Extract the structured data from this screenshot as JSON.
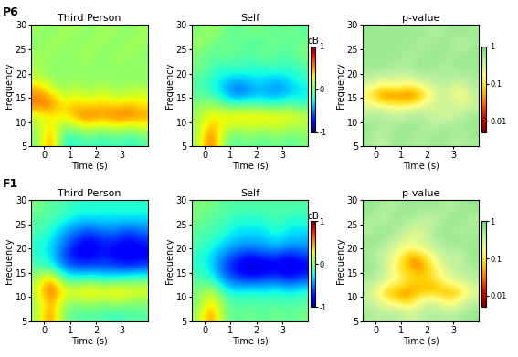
{
  "row_labels": [
    "P6",
    "F1"
  ],
  "chart_data": [
    {
      "type": "heatmap",
      "title": "Third Person",
      "xlabel": "Time (s)",
      "ylabel": "Frequency",
      "x": [
        -0.5,
        0,
        0.5,
        1,
        1.5,
        2,
        2.5,
        3,
        3.5,
        4
      ],
      "y": [
        5,
        7.5,
        10,
        12.5,
        15,
        17.5,
        20,
        22.5,
        25,
        27.5,
        30
      ],
      "xlim": [
        -0.5,
        4
      ],
      "ylim": [
        5,
        30
      ],
      "xticks": [
        0,
        1,
        2,
        3
      ],
      "yticks": [
        5,
        10,
        15,
        20,
        25,
        30
      ],
      "color_range": [
        -1,
        1
      ],
      "cells": [
        [
          0.0,
          0.6,
          -0.2,
          -0.2,
          -0.1,
          -0.2,
          -0.1,
          -0.2,
          -0.1
        ],
        [
          0.1,
          0.4,
          0.0,
          0.1,
          0.2,
          0.1,
          0.2,
          0.1,
          0.2
        ],
        [
          0.2,
          0.3,
          0.3,
          0.5,
          0.6,
          0.5,
          0.6,
          0.6,
          0.5
        ],
        [
          0.6,
          0.6,
          0.3,
          0.4,
          0.3,
          0.4,
          0.3,
          0.4,
          0.3
        ],
        [
          0.5,
          0.3,
          0.1,
          0.2,
          0.1,
          0.2,
          0.1,
          0.1,
          0.2
        ],
        [
          0.2,
          0.1,
          0.0,
          0.1,
          0.0,
          0.1,
          0.0,
          0.1,
          0.0
        ],
        [
          0.1,
          0.0,
          0.1,
          0.0,
          0.1,
          0.0,
          0.1,
          0.0,
          0.1
        ],
        [
          0.1,
          0.1,
          0.0,
          0.1,
          0.1,
          0.0,
          0.1,
          0.1,
          0.0
        ],
        [
          0.0,
          0.1,
          0.1,
          0.0,
          0.1,
          0.1,
          0.0,
          0.1,
          0.1
        ],
        [
          0.1,
          0.0,
          0.1,
          0.1,
          0.0,
          0.1,
          0.1,
          0.0,
          0.1
        ]
      ]
    },
    {
      "type": "heatmap",
      "title": "Self",
      "xlabel": "Time (s)",
      "ylabel": "Frequency",
      "x": [
        -0.5,
        0,
        0.5,
        1,
        1.5,
        2,
        2.5,
        3,
        3.5,
        4
      ],
      "y": [
        5,
        7.5,
        10,
        12.5,
        15,
        17.5,
        20,
        22.5,
        25,
        27.5,
        30
      ],
      "xlim": [
        -0.5,
        4
      ],
      "ylim": [
        5,
        30
      ],
      "xticks": [
        0,
        1,
        2,
        3
      ],
      "yticks": [
        5,
        10,
        15,
        20,
        25,
        30
      ],
      "color_range": [
        -1,
        1
      ],
      "colorbar_ticks": [
        -1,
        0,
        1
      ],
      "colorbar_label": "dB",
      "cells": [
        [
          0.1,
          0.7,
          0.0,
          -0.1,
          0.0,
          -0.1,
          0.0,
          -0.1,
          0.0
        ],
        [
          0.1,
          0.5,
          0.2,
          0.1,
          0.2,
          0.1,
          0.2,
          0.1,
          0.1
        ],
        [
          0.1,
          0.3,
          0.3,
          0.4,
          0.3,
          0.4,
          0.3,
          0.3,
          0.2
        ],
        [
          0.0,
          0.1,
          -0.1,
          -0.2,
          -0.1,
          -0.2,
          -0.2,
          -0.1,
          -0.2
        ],
        [
          -0.1,
          -0.2,
          -0.4,
          -0.6,
          -0.5,
          -0.4,
          -0.5,
          -0.4,
          -0.3
        ],
        [
          -0.1,
          -0.2,
          -0.3,
          -0.4,
          -0.3,
          -0.3,
          -0.4,
          -0.3,
          -0.2
        ],
        [
          0.0,
          -0.1,
          -0.2,
          -0.1,
          -0.2,
          -0.2,
          -0.1,
          -0.2,
          -0.1
        ],
        [
          0.0,
          -0.1,
          0.0,
          -0.1,
          -0.1,
          0.0,
          -0.1,
          -0.1,
          0.0
        ],
        [
          0.1,
          0.0,
          -0.1,
          0.0,
          -0.1,
          -0.1,
          0.0,
          -0.1,
          0.0
        ],
        [
          0.0,
          0.1,
          0.0,
          -0.1,
          0.0,
          0.0,
          -0.1,
          0.0,
          -0.1
        ]
      ]
    },
    {
      "type": "heatmap",
      "title": "p-value",
      "xlabel": "Time (s)",
      "ylabel": "Frequency",
      "log": true,
      "x": [
        -0.5,
        0,
        0.5,
        1,
        1.5,
        2,
        2.5,
        3,
        3.5,
        4
      ],
      "y": [
        5,
        7.5,
        10,
        12.5,
        15,
        17.5,
        20,
        22.5,
        25,
        27.5,
        30
      ],
      "xlim": [
        -0.5,
        4
      ],
      "ylim": [
        5,
        30
      ],
      "xticks": [
        0,
        1,
        2,
        3
      ],
      "yticks": [
        5,
        10,
        15,
        20,
        25,
        30
      ],
      "color_range": [
        0.005,
        1
      ],
      "colorbar_ticks": [
        0.01,
        0.1,
        1
      ],
      "cells": [
        [
          0.5,
          0.3,
          0.6,
          0.5,
          0.4,
          0.6,
          0.5,
          0.4,
          0.5
        ],
        [
          0.6,
          0.4,
          0.5,
          0.6,
          0.5,
          0.4,
          0.6,
          0.5,
          0.6
        ],
        [
          0.4,
          0.5,
          0.3,
          0.4,
          0.5,
          0.3,
          0.2,
          0.4,
          0.5
        ],
        [
          0.2,
          0.05,
          0.08,
          0.05,
          0.1,
          0.3,
          0.4,
          0.2,
          0.3
        ],
        [
          0.1,
          0.02,
          0.03,
          0.02,
          0.03,
          0.2,
          0.3,
          0.1,
          0.4
        ],
        [
          0.4,
          0.2,
          0.3,
          0.2,
          0.3,
          0.4,
          0.5,
          0.3,
          0.5
        ],
        [
          0.5,
          0.6,
          0.4,
          0.5,
          0.6,
          0.5,
          0.4,
          0.6,
          0.5
        ],
        [
          0.6,
          0.5,
          0.6,
          0.4,
          0.5,
          0.6,
          0.5,
          0.5,
          0.6
        ],
        [
          0.5,
          0.6,
          0.5,
          0.6,
          0.4,
          0.5,
          0.6,
          0.3,
          0.5
        ],
        [
          0.6,
          0.5,
          0.6,
          0.5,
          0.6,
          0.4,
          0.5,
          0.6,
          0.5
        ]
      ]
    },
    {
      "type": "heatmap",
      "title": "Third Person",
      "xlabel": "Time (s)",
      "ylabel": "Frequency",
      "x": [
        -0.5,
        0,
        0.5,
        1,
        1.5,
        2,
        2.5,
        3,
        3.5,
        4
      ],
      "y": [
        5,
        7.5,
        10,
        12.5,
        15,
        17.5,
        20,
        22.5,
        25,
        27.5,
        30
      ],
      "xlim": [
        -0.5,
        4
      ],
      "ylim": [
        5,
        30
      ],
      "xticks": [
        0,
        1,
        2,
        3
      ],
      "yticks": [
        5,
        10,
        15,
        20,
        25,
        30
      ],
      "color_range": [
        -1,
        1
      ],
      "cells": [
        [
          0.1,
          0.6,
          0.0,
          -0.1,
          -0.1,
          -0.1,
          -0.2,
          -0.1,
          -0.1
        ],
        [
          0.1,
          0.5,
          0.1,
          0.0,
          0.1,
          0.0,
          0.1,
          0.0,
          0.0
        ],
        [
          0.2,
          0.7,
          0.3,
          0.3,
          0.4,
          0.3,
          0.4,
          0.3,
          0.3
        ],
        [
          0.1,
          0.5,
          -0.1,
          -0.2,
          -0.1,
          -0.2,
          -0.2,
          -0.1,
          -0.1
        ],
        [
          -0.1,
          -0.2,
          -0.5,
          -0.6,
          -0.6,
          -0.6,
          -0.6,
          -0.7,
          -0.6
        ],
        [
          -0.2,
          -0.3,
          -0.6,
          -0.8,
          -0.8,
          -0.7,
          -0.8,
          -0.8,
          -0.8
        ],
        [
          -0.2,
          -0.3,
          -0.5,
          -0.7,
          -0.8,
          -0.7,
          -0.7,
          -0.8,
          -0.7
        ],
        [
          -0.1,
          -0.2,
          -0.4,
          -0.5,
          -0.6,
          -0.5,
          -0.5,
          -0.6,
          -0.5
        ],
        [
          -0.1,
          -0.1,
          -0.2,
          -0.3,
          -0.3,
          -0.3,
          -0.3,
          -0.3,
          -0.3
        ],
        [
          0.0,
          -0.1,
          -0.1,
          -0.2,
          -0.2,
          -0.2,
          -0.2,
          -0.2,
          -0.2
        ]
      ]
    },
    {
      "type": "heatmap",
      "title": "Self",
      "xlabel": "Time (s)",
      "ylabel": "Frequency",
      "x": [
        -0.5,
        0,
        0.5,
        1,
        1.5,
        2,
        2.5,
        3,
        3.5,
        4
      ],
      "y": [
        5,
        7.5,
        10,
        12.5,
        15,
        17.5,
        20,
        22.5,
        25,
        27.5,
        30
      ],
      "xlim": [
        -0.5,
        4
      ],
      "ylim": [
        5,
        30
      ],
      "xticks": [
        0,
        1,
        2,
        3
      ],
      "yticks": [
        5,
        10,
        15,
        20,
        25,
        30
      ],
      "color_range": [
        -1,
        1
      ],
      "colorbar_ticks": [
        -1,
        0,
        1
      ],
      "colorbar_label": "dB",
      "cells": [
        [
          0.1,
          0.6,
          0.0,
          -0.1,
          0.0,
          -0.1,
          0.0,
          -0.1,
          0.0
        ],
        [
          0.0,
          0.4,
          0.0,
          -0.1,
          -0.1,
          -0.1,
          -0.1,
          -0.1,
          -0.1
        ],
        [
          0.0,
          0.2,
          -0.2,
          -0.3,
          -0.2,
          -0.3,
          -0.2,
          -0.3,
          -0.2
        ],
        [
          -0.1,
          -0.2,
          -0.5,
          -0.6,
          -0.7,
          -0.6,
          -0.6,
          -0.7,
          -0.6
        ],
        [
          -0.2,
          -0.3,
          -0.6,
          -0.8,
          -0.9,
          -0.9,
          -0.8,
          -0.9,
          -0.8
        ],
        [
          -0.2,
          -0.3,
          -0.5,
          -0.6,
          -0.7,
          -0.6,
          -0.6,
          -0.7,
          -0.6
        ],
        [
          -0.1,
          -0.2,
          -0.3,
          -0.4,
          -0.4,
          -0.4,
          -0.3,
          -0.4,
          -0.4
        ],
        [
          -0.1,
          -0.1,
          -0.2,
          -0.3,
          -0.3,
          -0.3,
          -0.2,
          -0.3,
          -0.3
        ],
        [
          0.0,
          -0.1,
          -0.1,
          -0.2,
          -0.2,
          -0.2,
          -0.1,
          -0.2,
          -0.2
        ],
        [
          0.0,
          0.0,
          -0.1,
          -0.1,
          -0.1,
          -0.1,
          -0.1,
          -0.1,
          -0.1
        ]
      ]
    },
    {
      "type": "heatmap",
      "title": "p-value",
      "xlabel": "Time (s)",
      "ylabel": "Frequency",
      "log": true,
      "x": [
        -0.5,
        0,
        0.5,
        1,
        1.5,
        2,
        2.5,
        3,
        3.5,
        4
      ],
      "y": [
        5,
        7.5,
        10,
        12.5,
        15,
        17.5,
        20,
        22.5,
        25,
        27.5,
        30
      ],
      "xlim": [
        -0.5,
        4
      ],
      "ylim": [
        5,
        30
      ],
      "xticks": [
        0,
        1,
        2,
        3
      ],
      "yticks": [
        5,
        10,
        15,
        20,
        25,
        30
      ],
      "color_range": [
        0.005,
        1
      ],
      "colorbar_ticks": [
        0.01,
        0.1,
        1
      ],
      "cells": [
        [
          0.5,
          0.4,
          0.5,
          0.3,
          0.4,
          0.5,
          0.4,
          0.5,
          0.6
        ],
        [
          0.4,
          0.2,
          0.1,
          0.05,
          0.2,
          0.3,
          0.1,
          0.2,
          0.4
        ],
        [
          0.3,
          0.05,
          0.04,
          0.03,
          0.05,
          0.02,
          0.05,
          0.03,
          0.2
        ],
        [
          0.5,
          0.3,
          0.2,
          0.1,
          0.08,
          0.1,
          0.2,
          0.3,
          0.4
        ],
        [
          0.6,
          0.4,
          0.1,
          0.05,
          0.02,
          0.1,
          0.3,
          0.4,
          0.5
        ],
        [
          0.5,
          0.3,
          0.2,
          0.04,
          0.05,
          0.2,
          0.4,
          0.3,
          0.6
        ],
        [
          0.6,
          0.5,
          0.3,
          0.2,
          0.3,
          0.4,
          0.5,
          0.6,
          0.5
        ],
        [
          0.4,
          0.6,
          0.5,
          0.3,
          0.2,
          0.5,
          0.6,
          0.4,
          0.5
        ],
        [
          0.5,
          0.3,
          0.6,
          0.5,
          0.4,
          0.3,
          0.5,
          0.6,
          0.4
        ],
        [
          0.6,
          0.5,
          0.4,
          0.6,
          0.5,
          0.6,
          0.4,
          0.5,
          0.6
        ]
      ]
    }
  ]
}
